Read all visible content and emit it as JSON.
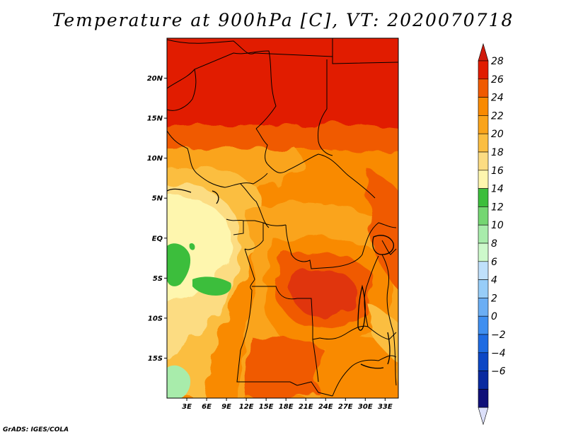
{
  "title": "Temperature at 900hPa [C], VT: 2020070718",
  "credit": "GrADS: IGES/COLA",
  "map": {
    "variable": "Temperature at 900hPa",
    "units": "C",
    "lon_range": [
      0,
      35
    ],
    "lat_range": [
      -20,
      25
    ],
    "lat_ticks": [
      {
        "value": 20,
        "label": "20N"
      },
      {
        "value": 15,
        "label": "15N"
      },
      {
        "value": 10,
        "label": "10N"
      },
      {
        "value": 5,
        "label": "5N"
      },
      {
        "value": 0,
        "label": "EQ"
      },
      {
        "value": -5,
        "label": "5S"
      },
      {
        "value": -10,
        "label": "10S"
      },
      {
        "value": -15,
        "label": "15S"
      }
    ],
    "lon_ticks": [
      {
        "value": 3,
        "label": "3E"
      },
      {
        "value": 6,
        "label": "6E"
      },
      {
        "value": 9,
        "label": "9E"
      },
      {
        "value": 12,
        "label": "12E"
      },
      {
        "value": 15,
        "label": "15E"
      },
      {
        "value": 18,
        "label": "18E"
      },
      {
        "value": 21,
        "label": "21E"
      },
      {
        "value": 24,
        "label": "24E"
      },
      {
        "value": 27,
        "label": "27E"
      },
      {
        "value": 30,
        "label": "30E"
      },
      {
        "value": 33,
        "label": "33E"
      }
    ]
  },
  "colorbar": {
    "levels": [
      "28",
      "26",
      "24",
      "22",
      "20",
      "18",
      "16",
      "14",
      "12",
      "10",
      "8",
      "6",
      "4",
      "2",
      "0",
      "−2",
      "−4",
      "−6"
    ],
    "colors": [
      "#e11c00",
      "#f05a00",
      "#f98a00",
      "#faa41a",
      "#fbbe41",
      "#fcdc82",
      "#fef6ae",
      "#3cbe3c",
      "#74d672",
      "#a8ecab",
      "#cdf9cb",
      "#bfe0fb",
      "#97cdf8",
      "#6baef4",
      "#3f8ff0",
      "#1e6be2",
      "#0c47c5",
      "#0a2aa0",
      "#101078"
    ],
    "top_color": "#d01a0c",
    "bottom_color": "#dce0fa"
  }
}
